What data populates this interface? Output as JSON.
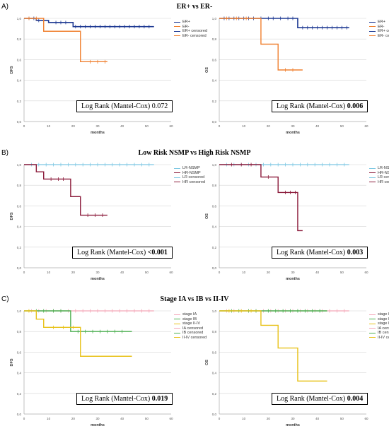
{
  "panels": [
    {
      "letter": "A)",
      "title": "ER+ vs ER-",
      "charts": [
        {
          "type": "line",
          "ylabel": "DFS",
          "xlabel": "months",
          "xlim": [
            0,
            60
          ],
          "ylim": [
            0,
            1.0
          ],
          "xticks": [
            "0",
            "10",
            "20",
            "30",
            "40",
            "50",
            "60"
          ],
          "yticks": [
            "0,0",
            "0,2",
            "0,4",
            "0,6",
            "0,8",
            "1,0"
          ],
          "series": [
            {
              "name": "ER+",
              "color": "#1f3a93",
              "width": 1.6,
              "x": [
                0,
                5,
                10,
                20,
                53
              ],
              "y": [
                1.0,
                0.98,
                0.96,
                0.92,
                0.92
              ],
              "censor": [
                2,
                4,
                6,
                8,
                13,
                15,
                17,
                21,
                23,
                25,
                27,
                29,
                31,
                33,
                35,
                37,
                39,
                41,
                43,
                45,
                47,
                49,
                51
              ]
            },
            {
              "name": "ER-",
              "color": "#f08030",
              "width": 1.4,
              "x": [
                0,
                8,
                23,
                34
              ],
              "y": [
                1.0,
                0.875,
                0.58,
                0.58
              ],
              "censor": [
                2,
                5,
                27,
                30,
                33
              ]
            }
          ],
          "legend": [
            {
              "label": "ER+",
              "color": "#1f3a93",
              "thin": false
            },
            {
              "label": "ER-",
              "color": "#f08030",
              "thin": false
            },
            {
              "label": "ER+ censored",
              "color": "#1f3a93",
              "thin": true
            },
            {
              "label": "ER- censored",
              "color": "#f08030",
              "thin": true
            }
          ],
          "logrank": {
            "text": "Log Rank (Mantel-Cox)",
            "value": "0.072",
            "bold": false
          }
        },
        {
          "type": "line",
          "ylabel": "OS",
          "xlabel": "months",
          "xlim": [
            0,
            60
          ],
          "ylim": [
            0,
            1.0
          ],
          "xticks": [
            "0",
            "10",
            "20",
            "30",
            "40",
            "50",
            "60"
          ],
          "yticks": [
            "0,0",
            "0,2",
            "0,4",
            "0,6",
            "0,8",
            "1,0"
          ],
          "series": [
            {
              "name": "ER+",
              "color": "#1f3a93",
              "width": 1.6,
              "x": [
                0,
                32,
                53
              ],
              "y": [
                1.0,
                0.91,
                0.91
              ],
              "censor": [
                2,
                4,
                6,
                8,
                10,
                12,
                14,
                17,
                20,
                22,
                25,
                28,
                30,
                34,
                36,
                38,
                40,
                42,
                44,
                46,
                48,
                50,
                52
              ]
            },
            {
              "name": "ER-",
              "color": "#f08030",
              "width": 1.4,
              "x": [
                0,
                17,
                24,
                34
              ],
              "y": [
                1.0,
                0.75,
                0.5,
                0.5
              ],
              "censor": [
                3,
                7,
                11,
                27,
                30
              ]
            }
          ],
          "legend": [
            {
              "label": "ER+",
              "color": "#1f3a93",
              "thin": false
            },
            {
              "label": "ER-",
              "color": "#f08030",
              "thin": false
            },
            {
              "label": "ER+ censored",
              "color": "#1f3a93",
              "thin": true
            },
            {
              "label": "ER- censored",
              "color": "#f08030",
              "thin": true
            }
          ],
          "logrank": {
            "text": "Log Rank (Mantel-Cox)",
            "value": "0.006",
            "bold": true
          }
        }
      ]
    },
    {
      "letter": "B)",
      "title": "Low Risk NSMP vs High Risk NSMP",
      "charts": [
        {
          "type": "line",
          "ylabel": "DFS",
          "xlabel": "months",
          "xlim": [
            0,
            60
          ],
          "ylim": [
            0,
            1.0
          ],
          "xticks": [
            "0",
            "10",
            "20",
            "30",
            "40",
            "50",
            "60"
          ],
          "yticks": [
            "0,0",
            "0,2",
            "0,4",
            "0,6",
            "0,8",
            "1,0"
          ],
          "series": [
            {
              "name": "LR-NSMP",
              "color": "#7ec8e3",
              "width": 1.2,
              "x": [
                0,
                53
              ],
              "y": [
                1.0,
                1.0
              ],
              "censor": [
                3,
                6,
                9,
                12,
                15,
                18,
                21,
                24,
                27,
                30,
                33,
                36,
                39,
                42,
                45,
                48,
                51
              ]
            },
            {
              "name": "HR-NSMP",
              "color": "#8b1a3a",
              "width": 1.4,
              "x": [
                0,
                5,
                8,
                19,
                23,
                34
              ],
              "y": [
                1.0,
                0.93,
                0.86,
                0.69,
                0.51,
                0.51
              ],
              "censor": [
                11,
                14,
                16,
                26,
                29,
                32
              ]
            }
          ],
          "legend": [
            {
              "label": "LR-NSMP",
              "color": "#7ec8e3",
              "thin": false
            },
            {
              "label": "HR-NSMP",
              "color": "#8b1a3a",
              "thin": false
            },
            {
              "label": "LR censored",
              "color": "#7ec8e3",
              "thin": true
            },
            {
              "label": "HR censored",
              "color": "#8b1a3a",
              "thin": true
            }
          ],
          "logrank": {
            "text": "Log Rank (Mantel-Cox)",
            "value": "<0.001",
            "bold": true
          }
        },
        {
          "type": "line",
          "ylabel": "OS",
          "xlabel": "months",
          "xlim": [
            0,
            60
          ],
          "ylim": [
            0,
            1.0
          ],
          "xticks": [
            "0",
            "10",
            "20",
            "30",
            "40",
            "50",
            "60"
          ],
          "yticks": [
            "0,0",
            "0,2",
            "0,4",
            "0,6",
            "0,8",
            "1,0"
          ],
          "series": [
            {
              "name": "LR-NSMP",
              "color": "#7ec8e3",
              "width": 1.2,
              "x": [
                0,
                53
              ],
              "y": [
                1.0,
                1.0
              ],
              "censor": [
                3,
                6,
                9,
                12,
                15,
                18,
                21,
                24,
                27,
                30,
                33,
                36,
                39,
                42,
                45,
                48,
                51
              ]
            },
            {
              "name": "HR-NSMP",
              "color": "#8b1a3a",
              "width": 1.4,
              "x": [
                0,
                17,
                24,
                32,
                34
              ],
              "y": [
                1.0,
                0.88,
                0.73,
                0.36,
                0.36
              ],
              "censor": [
                5,
                9,
                13,
                20,
                27,
                29,
                31
              ]
            }
          ],
          "legend": [
            {
              "label": "LR-NSMP",
              "color": "#7ec8e3",
              "thin": false
            },
            {
              "label": "HR-NSMP",
              "color": "#8b1a3a",
              "thin": false
            },
            {
              "label": "LR censored",
              "color": "#7ec8e3",
              "thin": true
            },
            {
              "label": "HR censored",
              "color": "#8b1a3a",
              "thin": true
            }
          ],
          "logrank": {
            "text": "Log Rank (Mantel-Cox)",
            "value": "0.003",
            "bold": true
          }
        }
      ]
    },
    {
      "letter": "C)",
      "title": "Stage IA vs IB vs II-IV",
      "charts": [
        {
          "type": "line",
          "ylabel": "DFS",
          "xlabel": "months",
          "xlim": [
            0,
            60
          ],
          "ylim": [
            0,
            1.0
          ],
          "xticks": [
            "0",
            "10",
            "20",
            "30",
            "40",
            "50",
            "60"
          ],
          "yticks": [
            "0,0",
            "0,2",
            "0,4",
            "0,6",
            "0,8",
            "1,0"
          ],
          "series": [
            {
              "name": "stage IA",
              "color": "#f4a6b8",
              "width": 1.2,
              "x": [
                0,
                53
              ],
              "y": [
                1.0,
                1.0
              ],
              "censor": [
                3,
                6,
                9,
                12,
                15,
                18,
                21,
                24,
                27,
                30,
                33,
                36,
                39,
                42,
                45,
                48,
                51
              ]
            },
            {
              "name": "stage IB",
              "color": "#4caf50",
              "width": 1.4,
              "x": [
                0,
                19,
                44
              ],
              "y": [
                1.0,
                0.8,
                0.8
              ],
              "censor": [
                5,
                8,
                12,
                15,
                22,
                25,
                28,
                31,
                34,
                37,
                40
              ]
            },
            {
              "name": "stage II-IV",
              "color": "#e8c21a",
              "width": 1.4,
              "x": [
                0,
                5,
                8,
                23,
                44
              ],
              "y": [
                1.0,
                0.92,
                0.84,
                0.56,
                0.56
              ],
              "censor": [
                2,
                12,
                16,
                20
              ]
            }
          ],
          "legend": [
            {
              "label": "stage IA",
              "color": "#f4a6b8",
              "thin": false
            },
            {
              "label": "stage IB",
              "color": "#4caf50",
              "thin": false
            },
            {
              "label": "stage II-IV",
              "color": "#e8c21a",
              "thin": false
            },
            {
              "label": "IA censored",
              "color": "#f4a6b8",
              "thin": true
            },
            {
              "label": "IB censored",
              "color": "#4caf50",
              "thin": true
            },
            {
              "label": "II-IV censored",
              "color": "#e8c21a",
              "thin": true
            }
          ],
          "logrank": {
            "text": "Log Rank (Mantel-Cox)",
            "value": "0.019",
            "bold": true
          }
        },
        {
          "type": "line",
          "ylabel": "OS",
          "xlabel": "months",
          "xlim": [
            0,
            60
          ],
          "ylim": [
            0,
            1.0
          ],
          "xticks": [
            "0",
            "10",
            "20",
            "30",
            "40",
            "50",
            "60"
          ],
          "yticks": [
            "0,0",
            "0,2",
            "0,4",
            "0,6",
            "0,8",
            "1,0"
          ],
          "series": [
            {
              "name": "stage IA",
              "color": "#f4a6b8",
              "width": 1.2,
              "x": [
                0,
                53
              ],
              "y": [
                1.0,
                1.0
              ],
              "censor": [
                3,
                6,
                9,
                12,
                15,
                18,
                21,
                24,
                27,
                30,
                33,
                36,
                39,
                42,
                45,
                48,
                51
              ]
            },
            {
              "name": "stage IB",
              "color": "#4caf50",
              "width": 1.4,
              "x": [
                0,
                44
              ],
              "y": [
                1.0,
                1.0
              ],
              "censor": [
                5,
                8,
                12,
                15,
                20,
                23,
                26,
                29,
                32,
                35,
                38,
                41
              ]
            },
            {
              "name": "stage II-IV",
              "color": "#e8c21a",
              "width": 1.4,
              "x": [
                0,
                17,
                24,
                32,
                44
              ],
              "y": [
                1.0,
                0.86,
                0.64,
                0.32,
                0.32
              ],
              "censor": [
                4,
                9,
                13
              ]
            }
          ],
          "legend": [
            {
              "label": "stage IA",
              "color": "#f4a6b8",
              "thin": false
            },
            {
              "label": "stage IB",
              "color": "#4caf50",
              "thin": false
            },
            {
              "label": "stage II-IV",
              "color": "#e8c21a",
              "thin": false
            },
            {
              "label": "IA censored",
              "color": "#f4a6b8",
              "thin": true
            },
            {
              "label": "IB censored",
              "color": "#4caf50",
              "thin": true
            },
            {
              "label": "II-IV censored",
              "color": "#e8c21a",
              "thin": true
            }
          ],
          "logrank": {
            "text": "Log Rank (Mantel-Cox)",
            "value": "0.004",
            "bold": true
          }
        }
      ]
    }
  ]
}
